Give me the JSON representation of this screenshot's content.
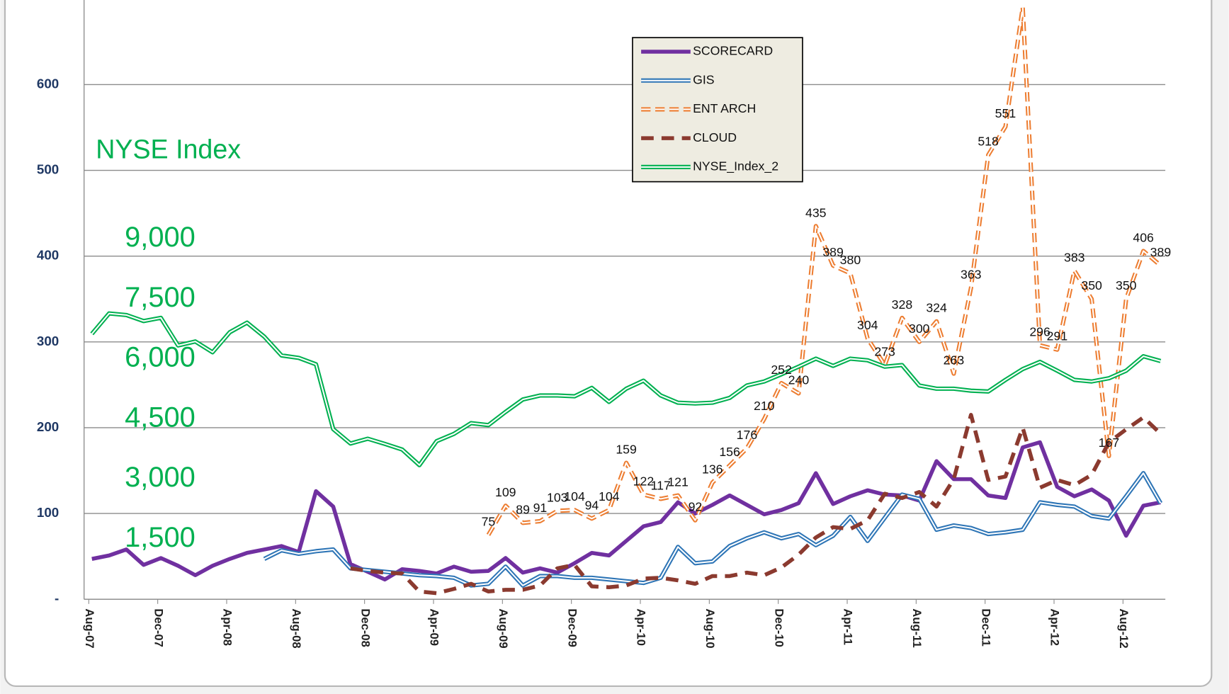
{
  "chart_data": {
    "type": "line",
    "annotation": "NYSE Index",
    "categories": [
      "Aug-07",
      null,
      null,
      null,
      "Dec-07",
      null,
      null,
      null,
      "Apr-08",
      null,
      null,
      null,
      "Aug-08",
      null,
      null,
      null,
      "Dec-08",
      null,
      null,
      null,
      "Apr-09",
      null,
      null,
      null,
      "Aug-09",
      null,
      null,
      null,
      "Dec-09",
      null,
      null,
      null,
      "Apr-10",
      null,
      null,
      null,
      "Aug-10",
      null,
      null,
      null,
      "Dec-10",
      null,
      null,
      null,
      "Apr-11",
      null,
      null,
      null,
      "Aug-11",
      null,
      null,
      null,
      "Dec-11",
      null,
      null,
      null,
      "Apr-12",
      null,
      null,
      null,
      "Aug-12",
      null,
      null
    ],
    "ylim": [
      0,
      700
    ],
    "yticks": [
      {
        "value": 0,
        "label": "-"
      },
      100,
      200,
      300,
      400,
      500,
      600
    ],
    "y2lim": [
      0,
      15000
    ],
    "y2ticks": [
      {
        "value": 1500,
        "label": "1,500"
      },
      {
        "value": 3000,
        "label": "3,000"
      },
      {
        "value": 4500,
        "label": "4,500"
      },
      {
        "value": 6000,
        "label": "6,000"
      },
      {
        "value": 7500,
        "label": "7,500"
      },
      {
        "value": 9000,
        "label": "9,000"
      }
    ],
    "grid": true,
    "legend": "top",
    "series": [
      {
        "name": "SCORECARD",
        "color": "#7030a0",
        "style": "solid",
        "values": [
          47,
          51,
          58,
          40,
          48,
          39,
          28,
          39,
          47,
          54,
          58,
          62,
          55,
          126,
          108,
          41,
          32,
          23,
          35,
          33,
          30,
          38,
          32,
          33,
          48,
          31,
          36,
          31,
          42,
          54,
          51,
          68,
          85,
          90,
          113,
          100,
          110,
          121,
          110,
          99,
          104,
          112,
          147,
          111,
          120,
          127,
          122,
          121,
          115,
          161,
          140,
          140,
          121,
          118,
          177,
          183,
          131,
          120,
          128,
          115,
          74,
          109,
          113
        ]
      },
      {
        "name": "GIS",
        "color": "#2e75b6",
        "style": "double",
        "values": [
          null,
          null,
          null,
          null,
          null,
          null,
          null,
          null,
          null,
          null,
          47,
          57,
          53,
          56,
          58,
          36,
          34,
          32,
          30,
          28,
          27,
          25,
          16,
          18,
          38,
          16,
          27,
          27,
          25,
          25,
          23,
          21,
          19,
          25,
          61,
          42,
          44,
          62,
          71,
          78,
          71,
          76,
          63,
          74,
          96,
          68,
          95,
          122,
          117,
          81,
          86,
          83,
          76,
          78,
          81,
          113,
          110,
          108,
          97,
          94,
          120,
          147,
          112
        ]
      },
      {
        "name": "ENT ARCH",
        "color": "#ed7d31",
        "style": "double-dashed",
        "data_labels": true,
        "values": [
          null,
          null,
          null,
          null,
          null,
          null,
          null,
          null,
          null,
          null,
          null,
          null,
          null,
          null,
          null,
          null,
          null,
          null,
          null,
          null,
          null,
          null,
          null,
          75,
          109,
          89,
          91,
          103,
          104,
          94,
          104,
          159,
          122,
          117,
          121,
          92,
          136,
          156,
          176,
          210,
          252,
          240,
          435,
          389,
          380,
          304,
          273,
          328,
          300,
          324,
          263,
          363,
          518,
          551,
          690,
          296,
          291,
          383,
          350,
          167,
          350,
          406,
          389
        ]
      },
      {
        "name": "CLOUD",
        "color": "#8b3a2f",
        "style": "dashed",
        "values": [
          null,
          null,
          null,
          null,
          null,
          null,
          null,
          null,
          null,
          null,
          null,
          null,
          null,
          null,
          null,
          36,
          33,
          31,
          30,
          9,
          7,
          12,
          18,
          9,
          11,
          11,
          16,
          36,
          40,
          15,
          14,
          16,
          24,
          25,
          22,
          18,
          27,
          27,
          31,
          28,
          37,
          52,
          72,
          84,
          82,
          92,
          123,
          118,
          125,
          108,
          140,
          215,
          139,
          143,
          200,
          130,
          139,
          133,
          145,
          183,
          198,
          212,
          193
        ]
      },
      {
        "name": "NYSE_Index_2",
        "color": "#00b050",
        "style": "double",
        "axis": "y2",
        "values": [
          6630,
          7140,
          7100,
          6950,
          7030,
          6340,
          6440,
          6170,
          6670,
          6910,
          6560,
          6090,
          6030,
          5870,
          4250,
          3890,
          4010,
          3880,
          3740,
          3350,
          3950,
          4130,
          4400,
          4350,
          4680,
          4990,
          5090,
          5090,
          5070,
          5280,
          4930,
          5260,
          5460,
          5090,
          4910,
          4890,
          4910,
          5030,
          5340,
          5440,
          5620,
          5810,
          6010,
          5830,
          6010,
          5970,
          5810,
          5850,
          5340,
          5260,
          5260,
          5210,
          5190,
          5480,
          5750,
          5930,
          5710,
          5480,
          5440,
          5520,
          5710,
          6070,
          5950
        ]
      }
    ]
  }
}
